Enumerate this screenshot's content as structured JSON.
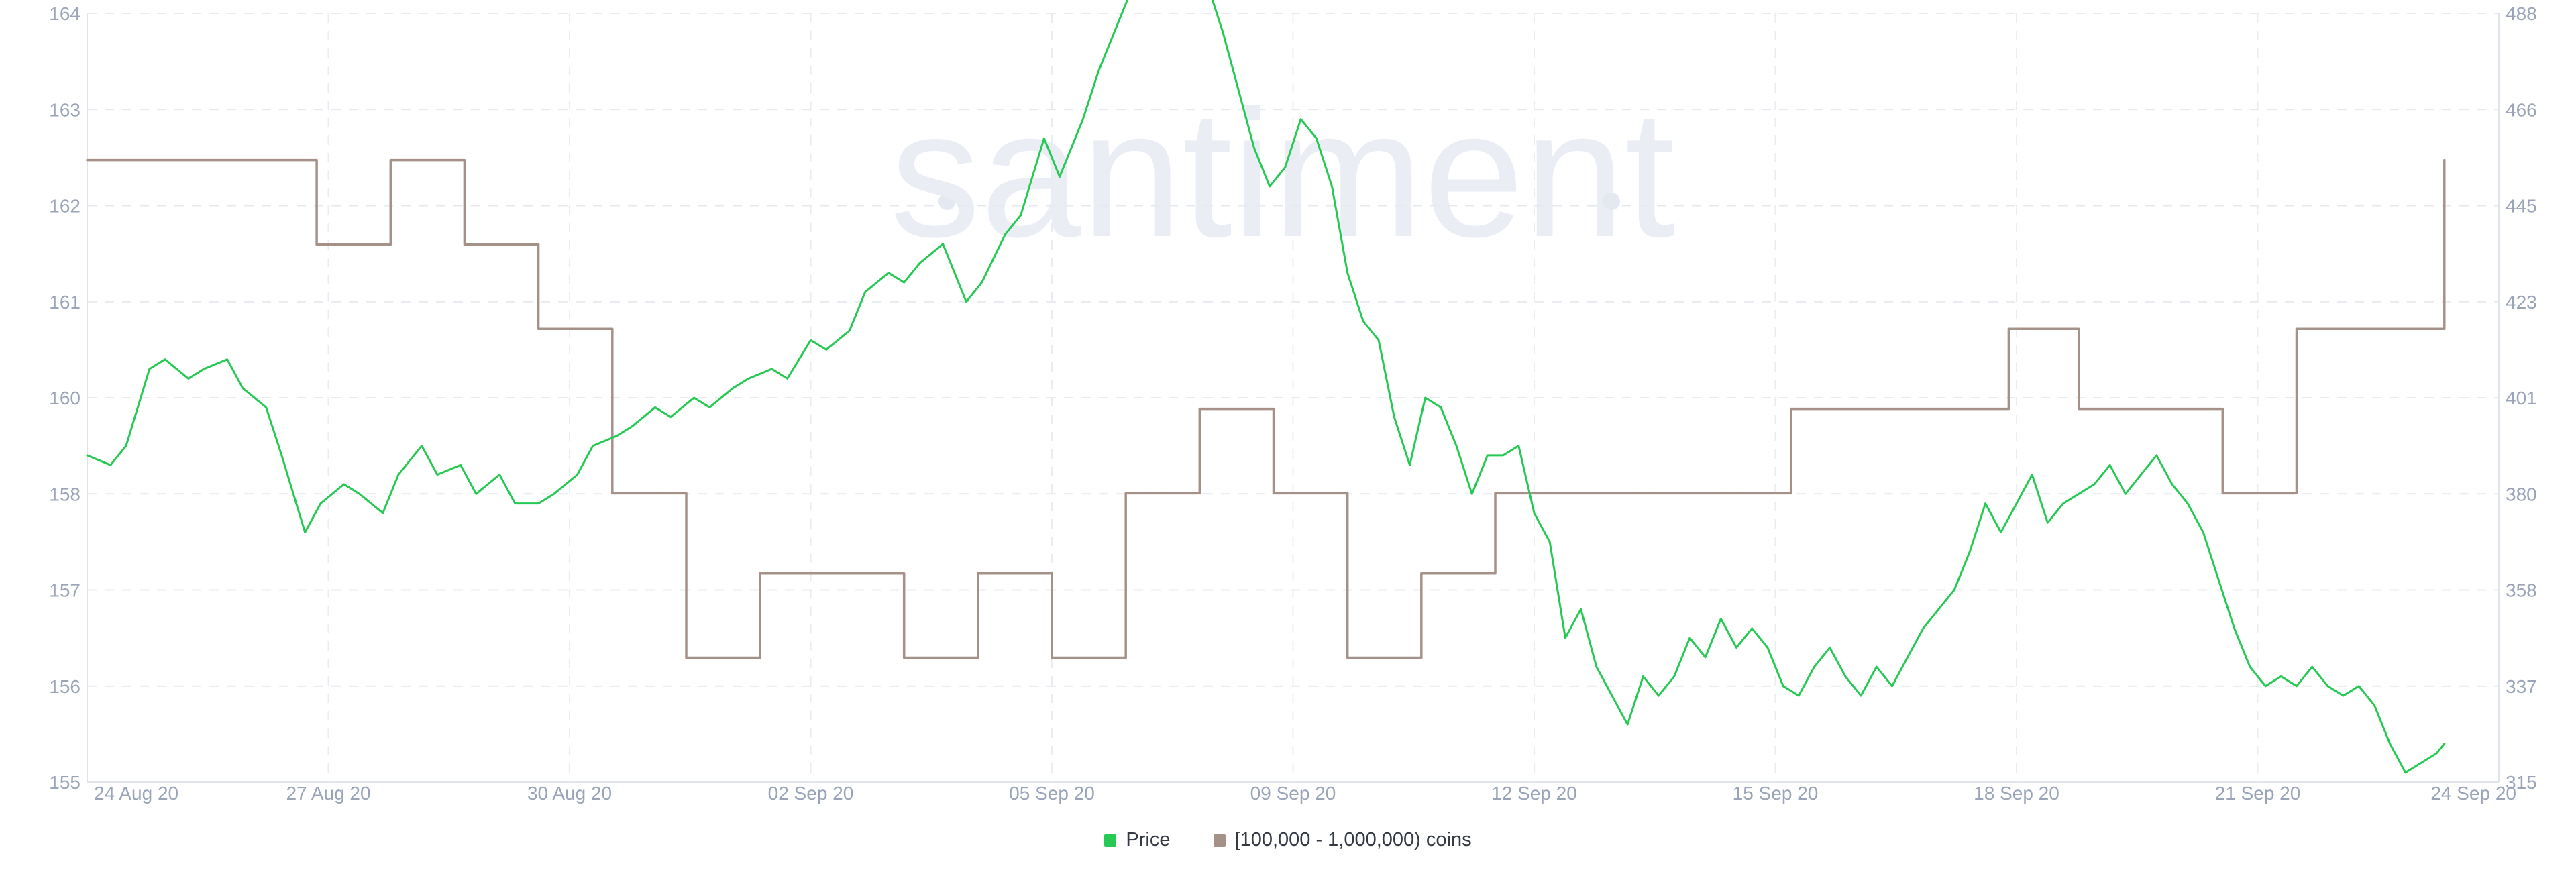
{
  "watermark": "santiment",
  "legend": {
    "price_label": "Price",
    "holders_label": "[100,000  - 1,000,000) coins"
  },
  "colors": {
    "price": "#26c953",
    "holders": "#a69188",
    "grid": "#e6e9ef",
    "tick": "#9aa4b8"
  },
  "chart_data": {
    "type": "line",
    "x_ticks": [
      "24 Aug 20",
      "27 Aug 20",
      "30 Aug 20",
      "02 Sep 20",
      "05 Sep 20",
      "09 Sep 20",
      "12 Sep 20",
      "15 Sep 20",
      "18 Sep 20",
      "21 Sep 20",
      "24 Sep 20"
    ],
    "x_range_days": [
      0,
      31
    ],
    "y_left": {
      "ticks": [
        "155",
        "156",
        "157",
        "158",
        "160",
        "161",
        "162",
        "163",
        "164"
      ],
      "range": [
        155,
        163
      ]
    },
    "y_right": {
      "ticks": [
        "315",
        "337",
        "358",
        "380",
        "401",
        "423",
        "445",
        "466",
        "488"
      ],
      "range": [
        315,
        488
      ]
    },
    "grid": true,
    "legend_position": "bottom-center",
    "series": [
      {
        "name": "Price",
        "axis": "left",
        "step": false,
        "points": [
          [
            0.0,
            158.4
          ],
          [
            0.3,
            158.3
          ],
          [
            0.5,
            158.5
          ],
          [
            0.8,
            159.3
          ],
          [
            1.0,
            159.4
          ],
          [
            1.3,
            159.2
          ],
          [
            1.5,
            159.3
          ],
          [
            1.8,
            159.4
          ],
          [
            2.0,
            159.1
          ],
          [
            2.3,
            158.9
          ],
          [
            2.5,
            158.4
          ],
          [
            2.8,
            157.6
          ],
          [
            3.0,
            157.9
          ],
          [
            3.3,
            158.1
          ],
          [
            3.5,
            158.0
          ],
          [
            3.8,
            157.8
          ],
          [
            4.0,
            158.2
          ],
          [
            4.3,
            158.5
          ],
          [
            4.5,
            158.2
          ],
          [
            4.8,
            158.3
          ],
          [
            5.0,
            158.0
          ],
          [
            5.3,
            158.2
          ],
          [
            5.5,
            157.9
          ],
          [
            5.8,
            157.9
          ],
          [
            6.0,
            158.0
          ],
          [
            6.3,
            158.2
          ],
          [
            6.5,
            158.5
          ],
          [
            6.8,
            158.6
          ],
          [
            7.0,
            158.7
          ],
          [
            7.3,
            158.9
          ],
          [
            7.5,
            158.8
          ],
          [
            7.8,
            159.0
          ],
          [
            8.0,
            158.9
          ],
          [
            8.3,
            159.1
          ],
          [
            8.5,
            159.2
          ],
          [
            8.8,
            159.3
          ],
          [
            9.0,
            159.2
          ],
          [
            9.3,
            159.6
          ],
          [
            9.5,
            159.5
          ],
          [
            9.8,
            159.7
          ],
          [
            10.0,
            160.1
          ],
          [
            10.3,
            160.3
          ],
          [
            10.5,
            160.2
          ],
          [
            10.7,
            160.4
          ],
          [
            11.0,
            160.6
          ],
          [
            11.3,
            160.0
          ],
          [
            11.5,
            160.2
          ],
          [
            11.8,
            160.7
          ],
          [
            12.0,
            160.9
          ],
          [
            12.3,
            161.7
          ],
          [
            12.5,
            161.3
          ],
          [
            12.8,
            161.9
          ],
          [
            13.0,
            162.4
          ],
          [
            13.2,
            162.8
          ],
          [
            13.4,
            163.2
          ],
          [
            13.6,
            163.6
          ],
          [
            13.8,
            163.3
          ],
          [
            14.0,
            163.8
          ],
          [
            14.2,
            163.2
          ],
          [
            14.4,
            163.3
          ],
          [
            14.6,
            162.8
          ],
          [
            14.8,
            162.2
          ],
          [
            15.0,
            161.6
          ],
          [
            15.2,
            161.2
          ],
          [
            15.4,
            161.4
          ],
          [
            15.6,
            161.9
          ],
          [
            15.8,
            161.7
          ],
          [
            16.0,
            161.2
          ],
          [
            16.2,
            160.3
          ],
          [
            16.4,
            159.8
          ],
          [
            16.6,
            159.6
          ],
          [
            16.8,
            158.8
          ],
          [
            17.0,
            158.3
          ],
          [
            17.2,
            159.0
          ],
          [
            17.4,
            158.9
          ],
          [
            17.6,
            158.5
          ],
          [
            17.8,
            158.0
          ],
          [
            18.0,
            158.4
          ],
          [
            18.2,
            158.4
          ],
          [
            18.4,
            158.5
          ],
          [
            18.6,
            157.8
          ],
          [
            18.8,
            157.5
          ],
          [
            19.0,
            156.5
          ],
          [
            19.2,
            156.8
          ],
          [
            19.4,
            156.2
          ],
          [
            19.6,
            155.9
          ],
          [
            19.8,
            155.6
          ],
          [
            20.0,
            156.1
          ],
          [
            20.2,
            155.9
          ],
          [
            20.4,
            156.1
          ],
          [
            20.6,
            156.5
          ],
          [
            20.8,
            156.3
          ],
          [
            21.0,
            156.7
          ],
          [
            21.2,
            156.4
          ],
          [
            21.4,
            156.6
          ],
          [
            21.6,
            156.4
          ],
          [
            21.8,
            156.0
          ],
          [
            22.0,
            155.9
          ],
          [
            22.2,
            156.2
          ],
          [
            22.4,
            156.4
          ],
          [
            22.6,
            156.1
          ],
          [
            22.8,
            155.9
          ],
          [
            23.0,
            156.2
          ],
          [
            23.2,
            156.0
          ],
          [
            23.4,
            156.3
          ],
          [
            23.6,
            156.6
          ],
          [
            23.8,
            156.8
          ],
          [
            24.0,
            157.0
          ],
          [
            24.2,
            157.4
          ],
          [
            24.4,
            157.9
          ],
          [
            24.6,
            157.6
          ],
          [
            24.8,
            157.9
          ],
          [
            25.0,
            158.2
          ],
          [
            25.2,
            157.7
          ],
          [
            25.4,
            157.9
          ],
          [
            25.6,
            158.0
          ],
          [
            25.8,
            158.1
          ],
          [
            26.0,
            158.3
          ],
          [
            26.2,
            158.0
          ],
          [
            26.4,
            158.2
          ],
          [
            26.6,
            158.4
          ],
          [
            26.8,
            158.1
          ],
          [
            27.0,
            157.9
          ],
          [
            27.2,
            157.6
          ],
          [
            27.4,
            157.1
          ],
          [
            27.6,
            156.6
          ],
          [
            27.8,
            156.2
          ],
          [
            28.0,
            156.0
          ],
          [
            28.2,
            156.1
          ],
          [
            28.4,
            156.0
          ],
          [
            28.6,
            156.2
          ],
          [
            28.8,
            156.0
          ],
          [
            29.0,
            155.9
          ],
          [
            29.2,
            156.0
          ],
          [
            29.4,
            155.8
          ],
          [
            29.6,
            155.4
          ],
          [
            29.8,
            155.1
          ],
          [
            30.0,
            155.2
          ],
          [
            30.2,
            155.3
          ],
          [
            30.3,
            155.4
          ]
        ]
      },
      {
        "name": "[100,000  - 1,000,000) coins",
        "axis": "right",
        "step": true,
        "points": [
          [
            0.0,
            455
          ],
          [
            2.95,
            455
          ],
          [
            2.95,
            436
          ],
          [
            3.9,
            436
          ],
          [
            3.9,
            455
          ],
          [
            4.85,
            455
          ],
          [
            4.85,
            436
          ],
          [
            5.8,
            436
          ],
          [
            5.8,
            417
          ],
          [
            6.75,
            417
          ],
          [
            6.75,
            380
          ],
          [
            7.7,
            380
          ],
          [
            7.7,
            343
          ],
          [
            8.65,
            343
          ],
          [
            8.65,
            362
          ],
          [
            10.5,
            362
          ],
          [
            10.5,
            343
          ],
          [
            11.45,
            343
          ],
          [
            11.45,
            362
          ],
          [
            12.4,
            362
          ],
          [
            12.4,
            343
          ],
          [
            13.35,
            343
          ],
          [
            13.35,
            380
          ],
          [
            14.3,
            380
          ],
          [
            14.3,
            399
          ],
          [
            15.25,
            399
          ],
          [
            15.25,
            380
          ],
          [
            16.2,
            380
          ],
          [
            16.2,
            343
          ],
          [
            17.15,
            343
          ],
          [
            17.15,
            362
          ],
          [
            18.1,
            362
          ],
          [
            18.1,
            380
          ],
          [
            21.9,
            380
          ],
          [
            21.9,
            399
          ],
          [
            24.7,
            399
          ],
          [
            24.7,
            417
          ],
          [
            25.6,
            417
          ],
          [
            25.6,
            399
          ],
          [
            27.45,
            399
          ],
          [
            27.45,
            380
          ],
          [
            28.4,
            380
          ],
          [
            28.4,
            417
          ],
          [
            30.3,
            417
          ],
          [
            30.3,
            455
          ]
        ]
      }
    ]
  }
}
